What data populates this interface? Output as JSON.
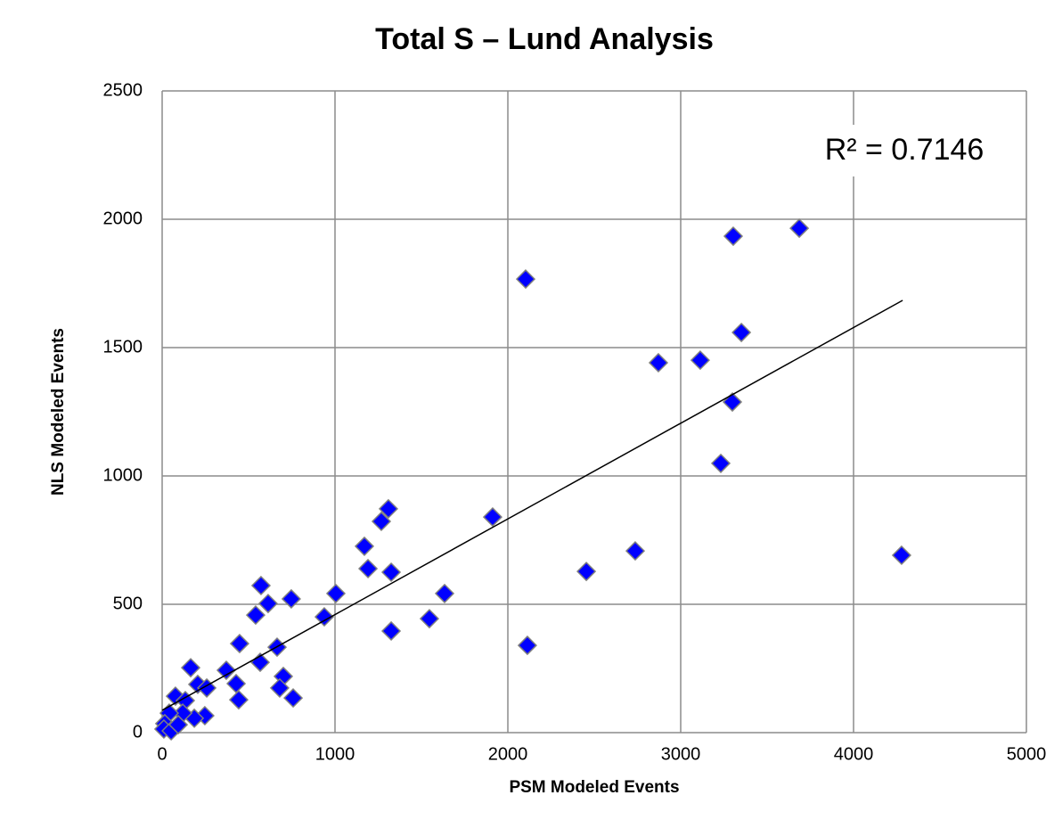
{
  "chart_data": {
    "type": "scatter",
    "title": "Total S – Lund Analysis",
    "x_label": "PSM Modeled Events",
    "y_label": "NLS Modeled Events",
    "annotation": "R² = 0.7146",
    "color": "#0000ff",
    "grid": true,
    "xlim": [
      0,
      5000
    ],
    "xticks": [
      0,
      1000,
      2000,
      3000,
      4000,
      5000
    ],
    "ylim": [
      0,
      2500
    ],
    "yticks": [
      0,
      500,
      1000,
      1500,
      2000,
      2500
    ],
    "x": [
      3686,
      3304,
      2103,
      3351,
      2871,
      3113,
      3299,
      3232,
      1309,
      1268,
      1912,
      1170,
      1191,
      1325,
      2737,
      2454,
      4278,
      572,
      613,
      747,
      1005,
      1634,
      541,
      938,
      1546,
      1325,
      2113,
      448,
      665,
      567,
      371,
      165,
      701,
      428,
      680,
      206,
      258,
      758,
      443,
      77,
      134,
      247,
      186,
      119,
      41,
      15,
      10,
      52,
      93
    ],
    "y": [
      1965,
      1934,
      1767,
      1559,
      1441,
      1451,
      1288,
      1049,
      872,
      823,
      840,
      726,
      639,
      625,
      708,
      628,
      691,
      573,
      503,
      521,
      542,
      542,
      458,
      451,
      444,
      396,
      340,
      347,
      333,
      274,
      243,
      253,
      219,
      191,
      174,
      188,
      174,
      135,
      128,
      142,
      125,
      66,
      56,
      76,
      76,
      35,
      14,
      7,
      31
    ],
    "trendline": {
      "x": [
        0,
        4284
      ],
      "y": [
        87,
        1684
      ]
    }
  }
}
